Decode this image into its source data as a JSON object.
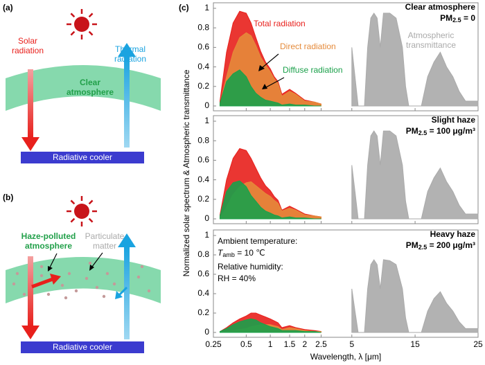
{
  "diagrams": {
    "a": {
      "label": "(a)",
      "solar": "Solar radiation",
      "thermal": "Thermal radiation",
      "atmosphere": "Clear atmosphere",
      "cooler": "Radiative cooler"
    },
    "b": {
      "label": "(b)",
      "atmosphere": "Haze-polluted atmosphere",
      "particles": "Particulate matter",
      "cooler": "Radiative cooler"
    }
  },
  "chart_data": {
    "type": "area",
    "label": "(c)",
    "xlabel": "Wavelength, λ [μm]",
    "ylabel": "Normalized solar spectrum &  Atmospheric transmittance",
    "xlim": [
      0.25,
      25
    ],
    "xticks": [
      0.25,
      0.5,
      1,
      1.5,
      2,
      2.5,
      5,
      15,
      25
    ],
    "panels": [
      {
        "title": "Clear atmosphere",
        "pm_parts": [
          "PM",
          "2.5",
          " = 0"
        ],
        "ylim": [
          0,
          1
        ],
        "yticks": [
          0,
          0.2,
          0.4,
          0.6,
          0.8,
          1
        ],
        "x": [
          0.3,
          0.35,
          0.4,
          0.45,
          0.5,
          0.6,
          0.7,
          0.8,
          0.9,
          1.0,
          1.1,
          1.2,
          1.3,
          1.5,
          1.7,
          2.0,
          2.3,
          2.5
        ],
        "series": [
          {
            "name": "Total radiation",
            "color": "#e8201c",
            "values": [
              0.05,
              0.55,
              0.85,
              0.97,
              0.95,
              0.85,
              0.7,
              0.56,
              0.45,
              0.38,
              0.3,
              0.25,
              0.12,
              0.17,
              0.13,
              0.06,
              0.04,
              0.02
            ]
          },
          {
            "name": "Direct radiation",
            "color": "#e58a3a",
            "values": [
              0.02,
              0.3,
              0.55,
              0.7,
              0.75,
              0.72,
              0.62,
              0.5,
              0.42,
              0.35,
              0.28,
              0.23,
              0.1,
              0.15,
              0.12,
              0.05,
              0.04,
              0.02
            ]
          },
          {
            "name": "Diffuse radiation",
            "color": "#1aa04a",
            "values": [
              0.03,
              0.25,
              0.33,
              0.37,
              0.3,
              0.2,
              0.13,
              0.09,
              0.06,
              0.05,
              0.04,
              0.03,
              0.01,
              0.02,
              0.01,
              0.01,
              0,
              0
            ]
          },
          {
            "name": "Atmospheric transmittance",
            "color": "#aaaaaa",
            "x": [
              5,
              5.5,
              6,
              7,
              7.5,
              8,
              8.5,
              9,
              9.5,
              10,
              11,
              12,
              13,
              13.5,
              14,
              16,
              17,
              18,
              19,
              20,
              21,
              22,
              23,
              24,
              25
            ],
            "values": [
              0.6,
              0.3,
              0,
              0,
              0.6,
              0.9,
              0.95,
              0.9,
              0.6,
              0.95,
              0.95,
              0.9,
              0.6,
              0.2,
              0,
              0,
              0.3,
              0.45,
              0.55,
              0.4,
              0.3,
              0.15,
              0.05,
              0.05,
              0.05
            ]
          }
        ]
      },
      {
        "title": "Slight haze",
        "pm_parts": [
          "PM",
          "2.5",
          " = 100 μg/m³"
        ],
        "ylim": [
          0,
          1
        ],
        "yticks": [
          0,
          0.2,
          0.4,
          0.6,
          0.8,
          1
        ],
        "x": [
          0.3,
          0.35,
          0.4,
          0.45,
          0.5,
          0.6,
          0.7,
          0.8,
          0.9,
          1.0,
          1.1,
          1.2,
          1.3,
          1.5,
          1.7,
          2.0,
          2.3,
          2.5
        ],
        "series": [
          {
            "color": "#e8201c",
            "values": [
              0.04,
              0.4,
              0.62,
              0.72,
              0.7,
              0.62,
              0.52,
              0.42,
              0.34,
              0.29,
              0.23,
              0.19,
              0.09,
              0.13,
              0.1,
              0.05,
              0.03,
              0.02
            ]
          },
          {
            "color": "#e58a3a",
            "values": [
              0.01,
              0.12,
              0.25,
              0.33,
              0.37,
              0.38,
              0.34,
              0.3,
              0.26,
              0.23,
              0.19,
              0.16,
              0.08,
              0.11,
              0.09,
              0.04,
              0.03,
              0.02
            ]
          },
          {
            "color": "#1aa04a",
            "values": [
              0.03,
              0.28,
              0.37,
              0.39,
              0.33,
              0.24,
              0.18,
              0.12,
              0.08,
              0.06,
              0.04,
              0.03,
              0.01,
              0.02,
              0.01,
              0.01,
              0,
              0
            ]
          },
          {
            "color": "#aaaaaa",
            "x": [
              5,
              5.5,
              6,
              7,
              7.5,
              8,
              8.5,
              9,
              9.5,
              10,
              11,
              12,
              13,
              13.5,
              14,
              16,
              17,
              18,
              19,
              20,
              21,
              22,
              23,
              24,
              25
            ],
            "values": [
              0.55,
              0.28,
              0,
              0,
              0.55,
              0.85,
              0.9,
              0.85,
              0.55,
              0.9,
              0.9,
              0.85,
              0.55,
              0.18,
              0,
              0,
              0.28,
              0.42,
              0.52,
              0.38,
              0.28,
              0.14,
              0.05,
              0.05,
              0.05
            ]
          }
        ]
      },
      {
        "title": "Heavy haze",
        "pm_parts": [
          "PM",
          "2.5",
          " = 200 μg/m³"
        ],
        "notes": [
          "Ambient temperature:",
          "Relative humidity:",
          "RH = 40%"
        ],
        "temperature_parts": [
          "T",
          "amb",
          " = 10 ℃"
        ],
        "ylim": [
          0,
          1
        ],
        "yticks": [
          0,
          0.2,
          0.4,
          0.6,
          0.8,
          1
        ],
        "x": [
          0.3,
          0.35,
          0.4,
          0.45,
          0.5,
          0.6,
          0.7,
          0.8,
          0.9,
          1.0,
          1.1,
          1.2,
          1.3,
          1.5,
          1.7,
          2.0,
          2.3,
          2.5
        ],
        "series": [
          {
            "color": "#e8201c",
            "values": [
              0.01,
              0.05,
              0.1,
              0.14,
              0.17,
              0.2,
              0.2,
              0.18,
              0.16,
              0.14,
              0.12,
              0.1,
              0.05,
              0.07,
              0.05,
              0.03,
              0.02,
              0.01
            ]
          },
          {
            "color": "#e58a3a",
            "values": [
              0,
              0.01,
              0.02,
              0.03,
              0.04,
              0.06,
              0.07,
              0.08,
              0.08,
              0.08,
              0.07,
              0.06,
              0.03,
              0.05,
              0.04,
              0.02,
              0.01,
              0.01
            ]
          },
          {
            "color": "#1aa04a",
            "values": [
              0.01,
              0.04,
              0.08,
              0.11,
              0.13,
              0.14,
              0.13,
              0.1,
              0.08,
              0.06,
              0.05,
              0.04,
              0.02,
              0.02,
              0.02,
              0.01,
              0.01,
              0
            ]
          },
          {
            "color": "#aaaaaa",
            "x": [
              5,
              5.5,
              6,
              7,
              7.5,
              8,
              8.5,
              9,
              9.5,
              10,
              11,
              12,
              13,
              13.5,
              14,
              16,
              17,
              18,
              19,
              20,
              21,
              22,
              23,
              24,
              25
            ],
            "values": [
              0.45,
              0.22,
              0,
              0,
              0.45,
              0.7,
              0.75,
              0.7,
              0.45,
              0.75,
              0.74,
              0.7,
              0.45,
              0.15,
              0,
              0,
              0.22,
              0.35,
              0.42,
              0.3,
              0.22,
              0.11,
              0.04,
              0.04,
              0.04
            ]
          }
        ]
      }
    ]
  }
}
